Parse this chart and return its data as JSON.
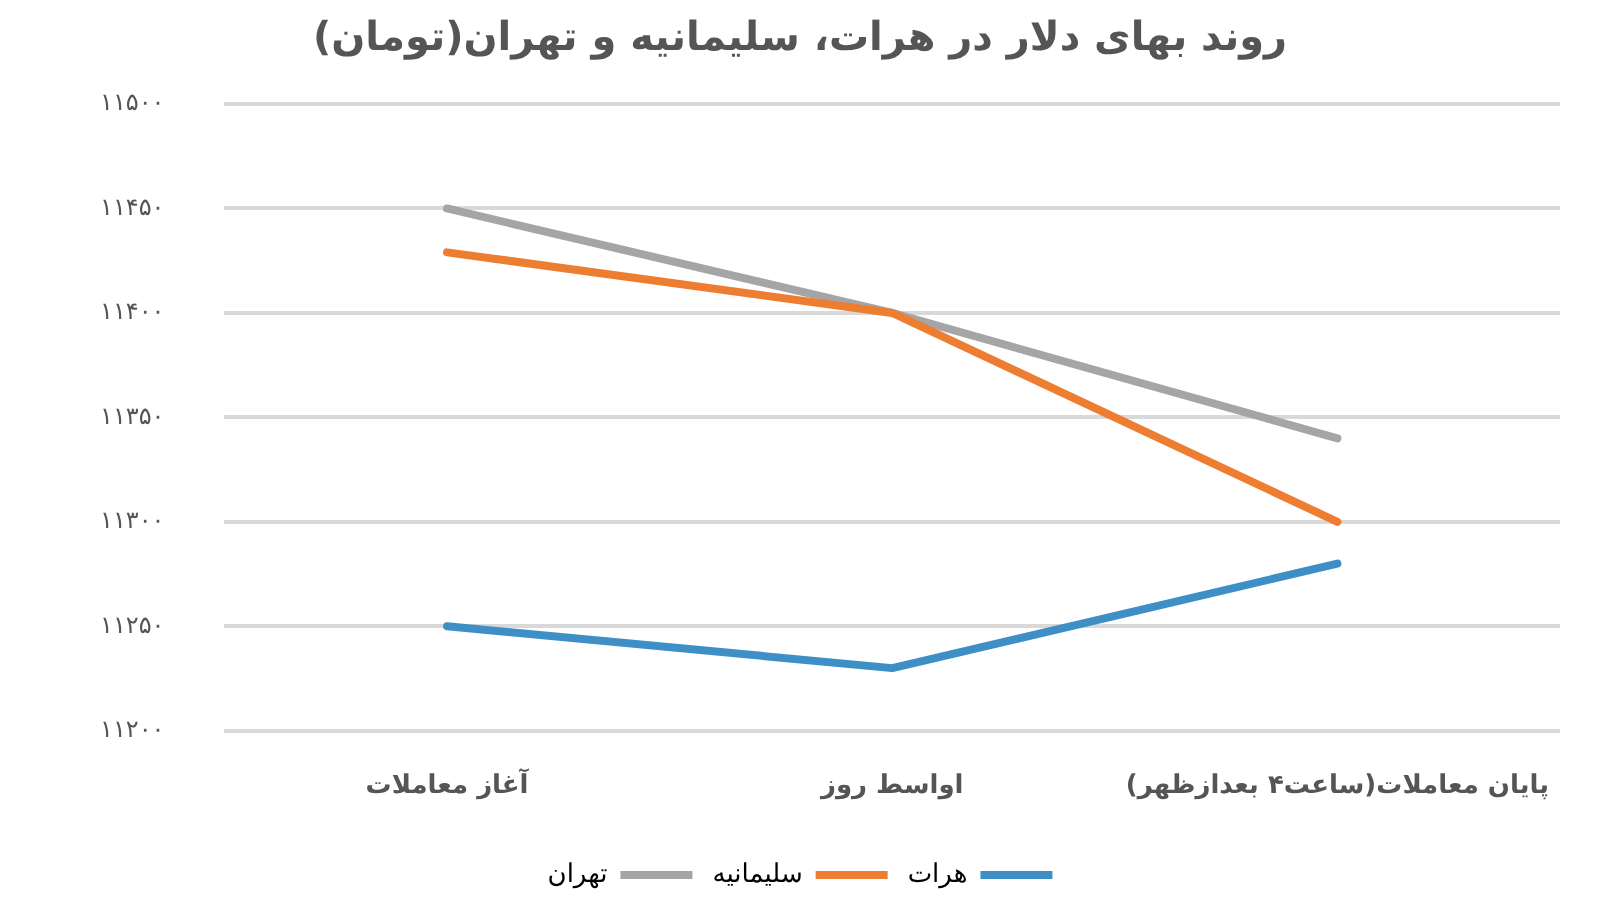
{
  "chart_data": {
    "type": "line",
    "title": "روند بهای دلار در هرات، سلیمانیه و تهران(تومان)",
    "categories": [
      "آغاز معاملات",
      "اواسط روز",
      "پایان معاملات(ساعت۴ بعدازظهر)"
    ],
    "series": [
      {
        "name": "هرات",
        "color": "#3e8fc6",
        "values": [
          11250,
          11230,
          11280
        ]
      },
      {
        "name": "سلیمانیه",
        "color": "#ed7d31",
        "values": [
          11429,
          11400,
          11300
        ]
      },
      {
        "name": "تهران",
        "color": "#a5a5a5",
        "values": [
          11450,
          11400,
          11340
        ]
      }
    ],
    "ylim": [
      11200,
      11500
    ],
    "yticks": [
      {
        "value": 11200,
        "label": "۱۱۲۰۰"
      },
      {
        "value": 11250,
        "label": "۱۱۲۵۰"
      },
      {
        "value": 11300,
        "label": "۱۱۳۰۰"
      },
      {
        "value": 11350,
        "label": "۱۱۳۵۰"
      },
      {
        "value": 11400,
        "label": "۱۱۴۰۰"
      },
      {
        "value": 11450,
        "label": "۱۱۴۵۰"
      },
      {
        "value": 11500,
        "label": "۱۱۵۰۰"
      }
    ],
    "grid": "y",
    "legend": "bottom",
    "marker": "none",
    "line_style": "solid"
  }
}
